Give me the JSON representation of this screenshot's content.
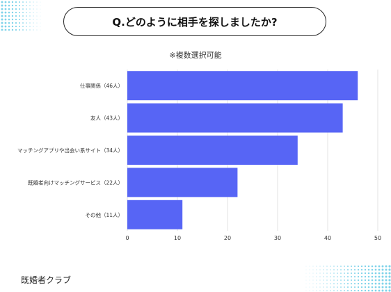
{
  "header": {
    "title": "Q.どのように相手を探しましたか?"
  },
  "note": "※複数選択可能",
  "footer": {
    "brand": "既婚者クラブ"
  },
  "colors": {
    "bar": "#5765f5",
    "grid": "#e3e3e3",
    "dots": "#7fd3ea"
  },
  "chart_data": {
    "type": "bar",
    "orientation": "horizontal",
    "categories": [
      "仕事関係（46人）",
      "友人（43人）",
      "マッチングアプリや出会い系サイト（34人）",
      "既婚者向けマッチングサービス（22人）",
      "その他（11人）"
    ],
    "values": [
      46,
      43,
      34,
      22,
      11
    ],
    "xlim": [
      0,
      50
    ],
    "xticks": [
      0,
      10,
      20,
      30,
      40,
      50
    ],
    "grid": true
  }
}
